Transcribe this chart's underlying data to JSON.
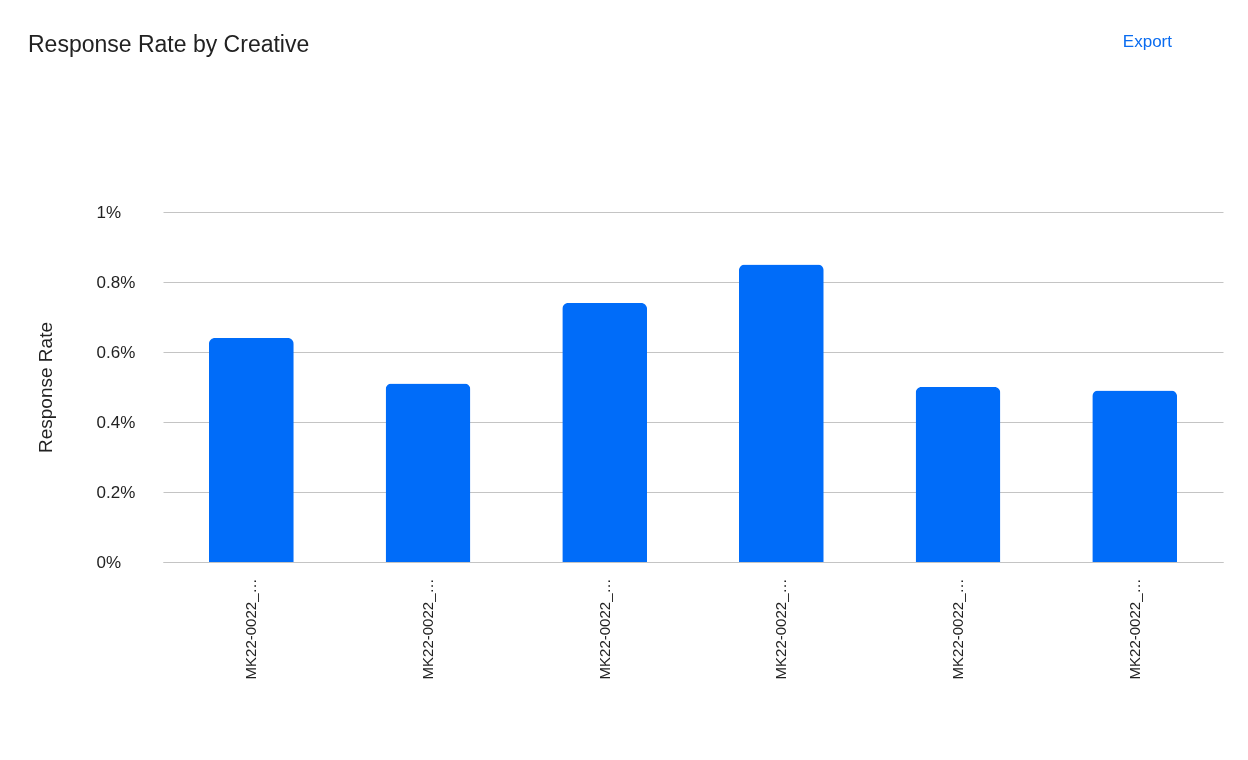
{
  "chart_data": {
    "type": "bar",
    "title": "Response Rate by Creative",
    "ylabel": "Response Rate",
    "categories": [
      "MK22-0022_…",
      "MK22-0022_…",
      "MK22-0022_…",
      "MK22-0022_…",
      "MK22-0022_…",
      "MK22-0022_…"
    ],
    "values": [
      0.64,
      0.51,
      0.74,
      0.85,
      0.5,
      0.49
    ],
    "color": "#006cf9",
    "ylim": [
      0,
      1
    ],
    "yticks": [
      {
        "value": 0,
        "label": "0%"
      },
      {
        "value": 0.2,
        "label": "0.2%"
      },
      {
        "value": 0.4,
        "label": "0.4%"
      },
      {
        "value": 0.6,
        "label": "0.6%"
      },
      {
        "value": 0.8,
        "label": "0.8%"
      },
      {
        "value": 1,
        "label": "1%"
      }
    ],
    "grid": "y",
    "annotations": [
      "Export"
    ]
  }
}
